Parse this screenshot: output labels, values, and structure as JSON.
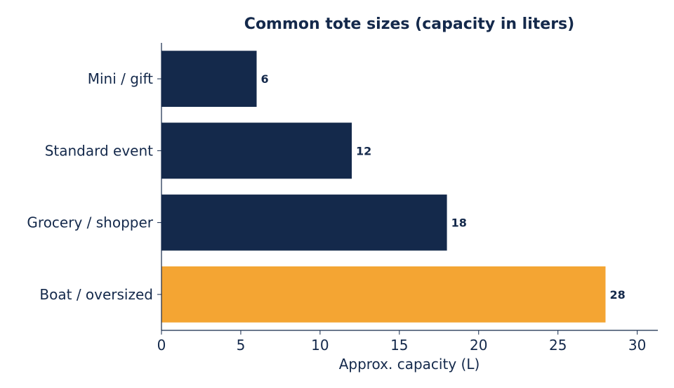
{
  "chart_data": {
    "type": "bar",
    "orientation": "horizontal",
    "title": "Common tote sizes (capacity in liters)",
    "xlabel": "Approx. capacity (L)",
    "ylabel": "",
    "categories": [
      "Mini / gift",
      "Standard event",
      "Grocery / shopper",
      "Boat / oversized"
    ],
    "values": [
      6,
      12,
      18,
      28
    ],
    "data_labels": [
      "6",
      "12",
      "18",
      "28"
    ],
    "highlighted_category": "Boat / oversized",
    "xlim": [
      0,
      31.3
    ],
    "xticks": [
      0,
      5,
      10,
      15,
      20,
      25,
      30
    ],
    "xtick_labels": [
      "0",
      "5",
      "10",
      "15",
      "20",
      "25",
      "30"
    ],
    "grid": false,
    "legend": "none"
  },
  "colors": {
    "bar": "#14294b",
    "highlight": "#f4a533",
    "text": "#14294b",
    "axis": "#14294b"
  }
}
